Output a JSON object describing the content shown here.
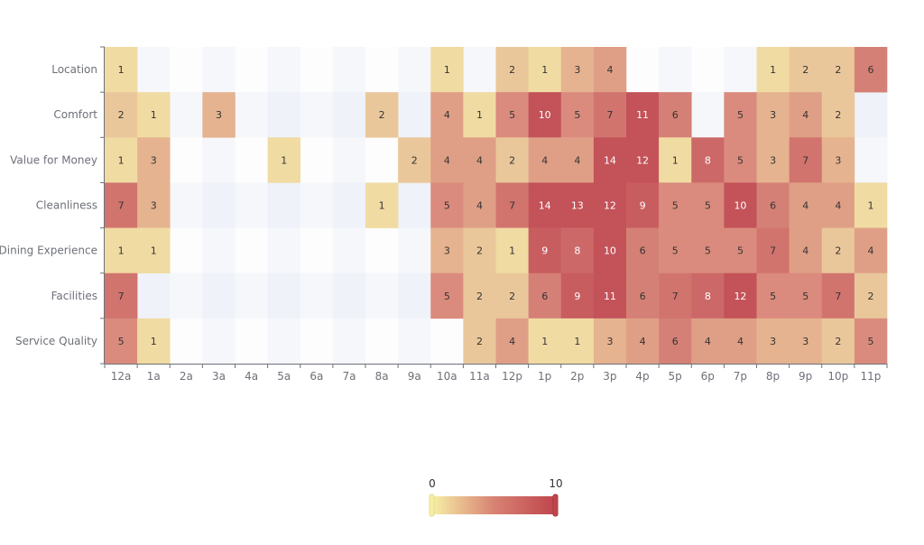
{
  "chart_data": {
    "type": "heatmap",
    "title": "",
    "xlabel": "",
    "ylabel": "",
    "x_categories": [
      "12a",
      "1a",
      "2a",
      "3a",
      "4a",
      "5a",
      "6a",
      "7a",
      "8a",
      "9a",
      "10a",
      "11a",
      "12p",
      "1p",
      "2p",
      "3p",
      "4p",
      "5p",
      "6p",
      "7p",
      "8p",
      "9p",
      "10p",
      "11p"
    ],
    "y_categories": [
      "Location",
      "Comfort",
      "Value for Money",
      "Cleanliness",
      "Dining Experience",
      "Facilities",
      "Service Quality"
    ],
    "values": [
      [
        1,
        null,
        null,
        null,
        null,
        null,
        null,
        null,
        null,
        null,
        1,
        null,
        2,
        1,
        3,
        4,
        null,
        null,
        null,
        null,
        1,
        2,
        2,
        6
      ],
      [
        2,
        1,
        null,
        3,
        null,
        null,
        null,
        null,
        2,
        null,
        4,
        1,
        5,
        10,
        5,
        7,
        11,
        6,
        null,
        5,
        3,
        4,
        2,
        null
      ],
      [
        1,
        3,
        null,
        null,
        null,
        1,
        null,
        null,
        null,
        2,
        4,
        4,
        2,
        4,
        4,
        14,
        12,
        1,
        8,
        5,
        3,
        7,
        3,
        null
      ],
      [
        7,
        3,
        null,
        null,
        null,
        null,
        null,
        null,
        1,
        null,
        5,
        4,
        7,
        14,
        13,
        12,
        9,
        5,
        5,
        10,
        6,
        4,
        4,
        1
      ],
      [
        1,
        1,
        null,
        null,
        null,
        null,
        null,
        null,
        null,
        null,
        3,
        2,
        1,
        9,
        8,
        10,
        6,
        5,
        5,
        5,
        7,
        4,
        2,
        4
      ],
      [
        7,
        null,
        null,
        null,
        null,
        null,
        null,
        null,
        null,
        null,
        5,
        2,
        2,
        6,
        9,
        11,
        6,
        7,
        8,
        12,
        5,
        5,
        7,
        2
      ],
      [
        5,
        1,
        null,
        null,
        null,
        null,
        null,
        null,
        null,
        null,
        null,
        2,
        4,
        1,
        1,
        3,
        4,
        6,
        4,
        4,
        3,
        3,
        2,
        5
      ]
    ],
    "visual_map": {
      "min": 0,
      "max": 10,
      "min_label": "0",
      "max_label": "10",
      "colors": [
        "#f6efa6",
        "#d88273",
        "#bf444c"
      ],
      "orientation": "horizontal",
      "placement": "bottom-center"
    },
    "split_area": true,
    "cell_labels": true
  }
}
